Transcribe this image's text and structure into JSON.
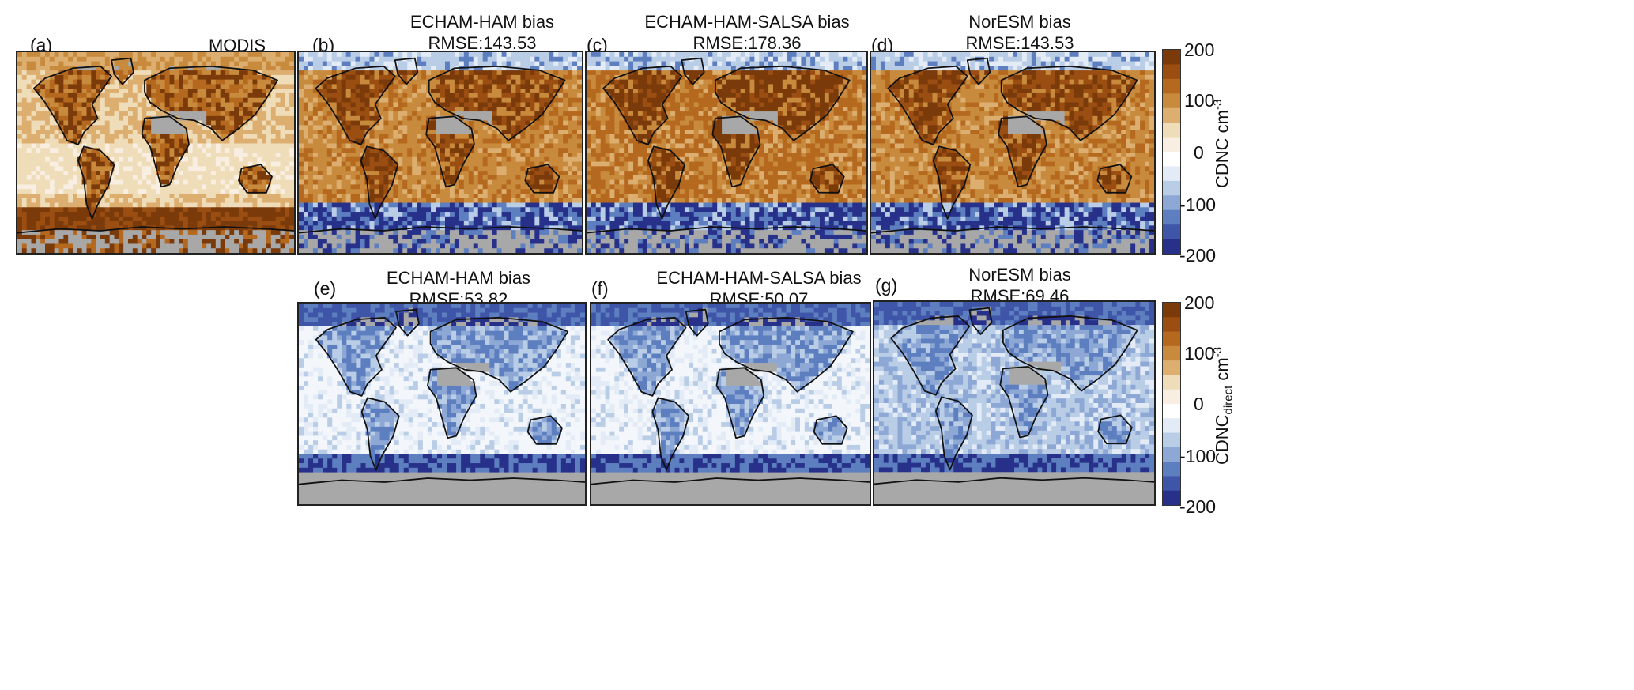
{
  "panels": [
    {
      "id": "a",
      "letter": "(a)",
      "title_lines": [
        "MODIS"
      ],
      "kind": "modis"
    },
    {
      "id": "b",
      "letter": "(b)",
      "title_lines": [
        "ECHAM-HAM bias",
        "RMSE:143.53"
      ],
      "kind": "bias-high"
    },
    {
      "id": "c",
      "letter": "(c)",
      "title_lines": [
        "ECHAM-HAM-SALSA bias",
        "RMSE:178.36"
      ],
      "kind": "bias-higher"
    },
    {
      "id": "d",
      "letter": "(d)",
      "title_lines": [
        "NorESM bias",
        "RMSE:143.53"
      ],
      "kind": "bias-high"
    },
    {
      "id": "e",
      "letter": "(e)",
      "title_lines": [
        "ECHAM-HAM bias",
        "RMSE:53.82"
      ],
      "kind": "bias-low"
    },
    {
      "id": "f",
      "letter": "(f)",
      "title_lines": [
        "ECHAM-HAM-SALSA bias",
        "RMSE:50.07"
      ],
      "kind": "bias-low"
    },
    {
      "id": "g",
      "letter": "(g)",
      "title_lines": [
        "NorESM bias",
        "RMSE:69.46"
      ],
      "kind": "bias-lower"
    }
  ],
  "colorbars": [
    {
      "id": "top",
      "ticks": [
        "200",
        "100",
        "0",
        "-100",
        "-200"
      ],
      "label_main": "CDNC cm",
      "label_sub": "",
      "label_sup": "-3"
    },
    {
      "id": "bottom",
      "ticks": [
        "200",
        "100",
        "0",
        "-100",
        "-200"
      ],
      "label_main": "CDNC",
      "label_sub": "direct",
      "label_sup": "-3",
      "label_tail": " cm"
    }
  ],
  "colors": {
    "high": "#7a3a0a",
    "mid_high": "#c88a3c",
    "light_high": "#efdcb8",
    "zero": "#ffffff",
    "light_low": "#b9cde6",
    "mid_low": "#5d7fc0",
    "low": "#27318a",
    "missing": "#a8a8a8",
    "coast": "#111111"
  }
}
